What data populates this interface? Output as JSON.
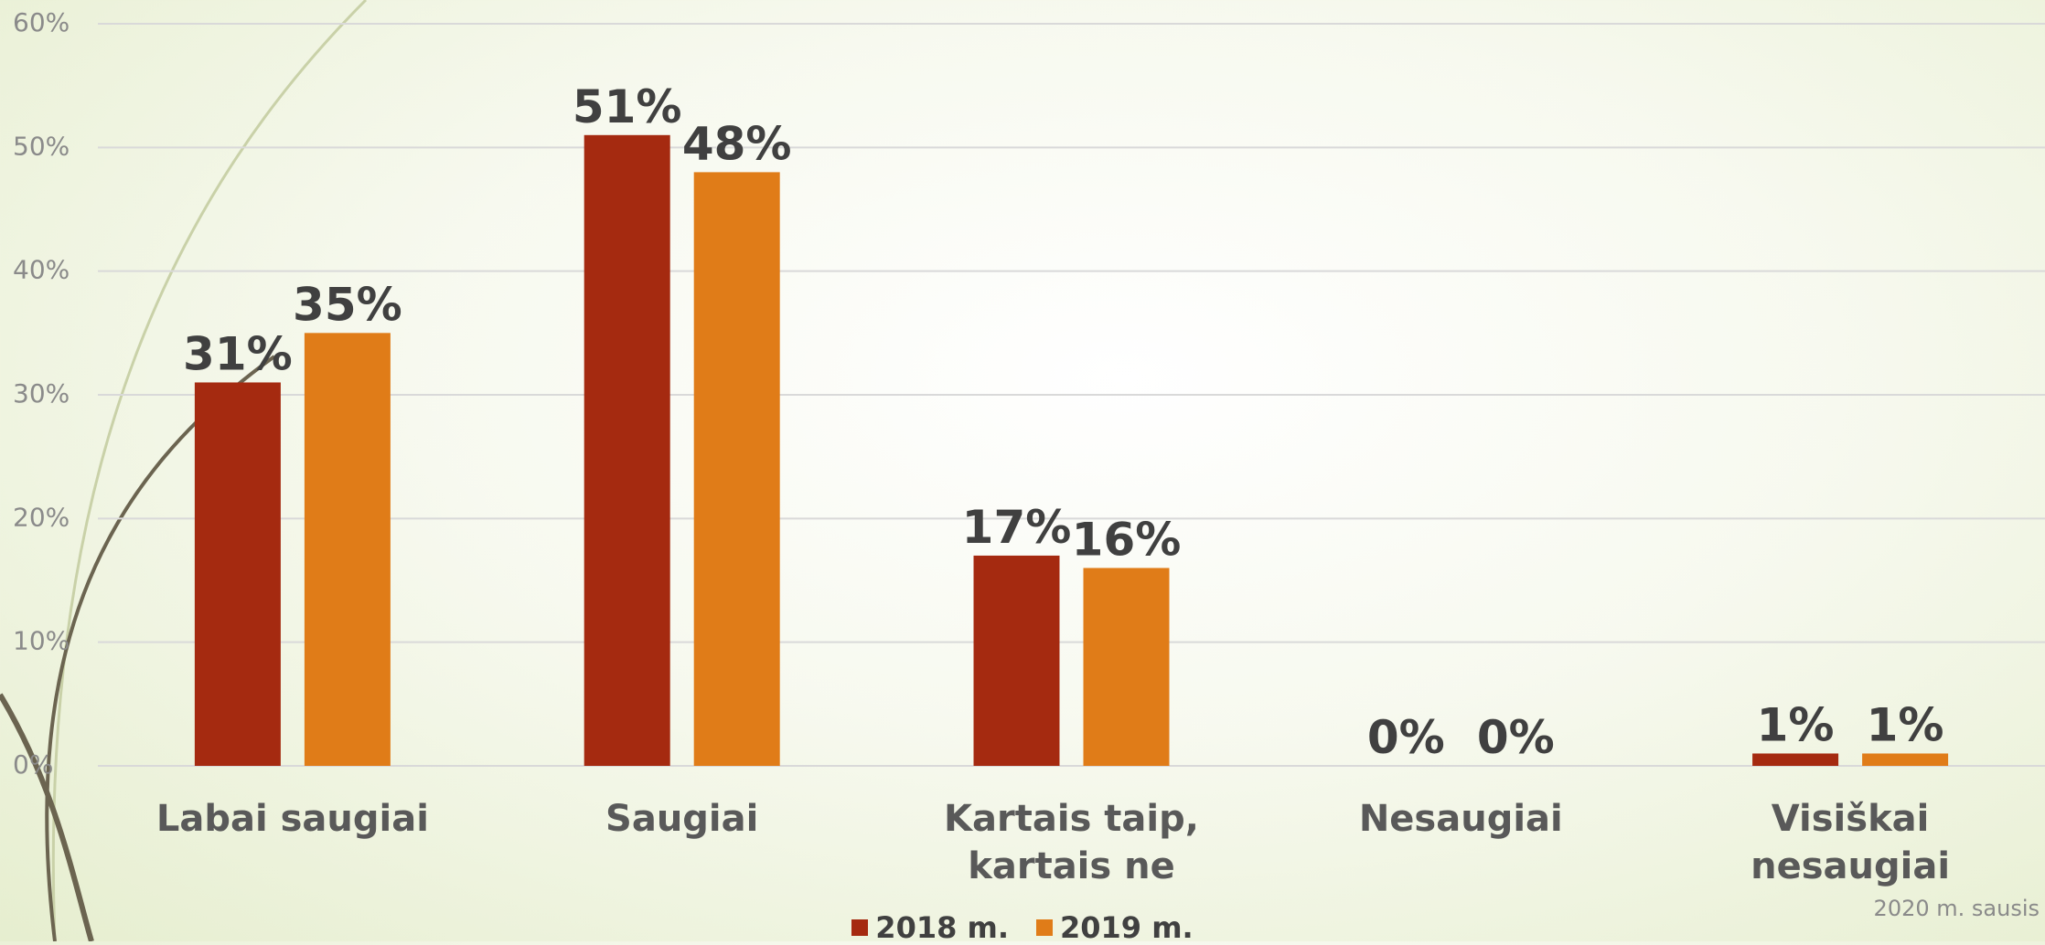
{
  "chart_data": {
    "type": "bar",
    "categories": [
      "Labai saugiai",
      "Saugiai",
      "Kartais taip, kartais ne",
      "Nesaugiai",
      "Visiškai nesaugiai"
    ],
    "series": [
      {
        "name": "2018 m.",
        "color": "#a52a10",
        "values": [
          31,
          51,
          17,
          0,
          1
        ],
        "value_labels": [
          "31%",
          "51%",
          "17%",
          "0%",
          "1%"
        ]
      },
      {
        "name": "2019 m.",
        "color": "#e07c18",
        "values": [
          35,
          48,
          16,
          0,
          1
        ],
        "value_labels": [
          "35%",
          "48%",
          "16%",
          "0%",
          "1%"
        ]
      }
    ],
    "ylim": [
      0,
      60
    ],
    "yticks": [
      {
        "value": 0,
        "label": "0%"
      },
      {
        "value": 10,
        "label": "10%"
      },
      {
        "value": 20,
        "label": "20%"
      },
      {
        "value": 30,
        "label": "30%"
      },
      {
        "value": 40,
        "label": "40%"
      },
      {
        "value": 50,
        "label": "50%"
      },
      {
        "value": 60,
        "label": "60%"
      }
    ],
    "grid": true,
    "footer": "2020 m. sausis"
  }
}
